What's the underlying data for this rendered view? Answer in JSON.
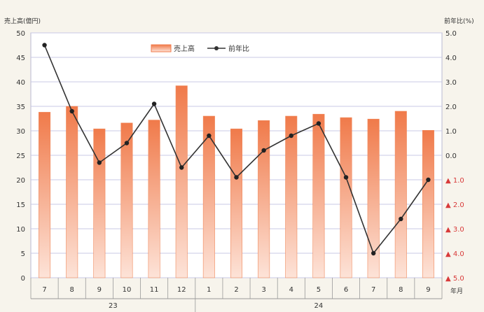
{
  "chart_data": {
    "type": "bar+line",
    "left_axis_title": "売上高(億円)",
    "right_axis_title": "前年比(%)",
    "corner_label": "年月",
    "legend": {
      "bar_label": "売上高",
      "line_label": "前年比"
    },
    "months": [
      "7",
      "8",
      "9",
      "10",
      "11",
      "12",
      "1",
      "2",
      "3",
      "4",
      "5",
      "6",
      "7",
      "8",
      "9"
    ],
    "years": [
      {
        "label": "23",
        "span": 6
      },
      {
        "label": "24",
        "span": 9
      }
    ],
    "series": [
      {
        "name": "売上高",
        "axis": "left",
        "kind": "bar",
        "color": "#f08a5d",
        "values": [
          33.8,
          35.0,
          30.4,
          31.6,
          32.2,
          39.2,
          33.0,
          30.4,
          32.1,
          33.0,
          33.4,
          32.7,
          32.4,
          34.0,
          30.1
        ]
      },
      {
        "name": "前年比",
        "axis": "right",
        "kind": "line",
        "color": "#333333",
        "values": [
          4.5,
          1.8,
          -0.3,
          0.5,
          2.1,
          -0.5,
          0.8,
          -0.9,
          0.2,
          0.8,
          1.3,
          -0.9,
          -4.0,
          -2.6,
          -1.0
        ]
      }
    ],
    "left_axis": {
      "min": 0,
      "max": 50,
      "ticks": [
        "0",
        "5",
        "10",
        "15",
        "20",
        "25",
        "30",
        "35",
        "40",
        "45",
        "50"
      ]
    },
    "right_axis": {
      "min": -5,
      "max": 5,
      "ticks": [
        {
          "value": 5,
          "label": "5.0"
        },
        {
          "value": 4,
          "label": "4.0"
        },
        {
          "value": 3,
          "label": "3.0"
        },
        {
          "value": 2,
          "label": "2.0"
        },
        {
          "value": 1,
          "label": "1.0"
        },
        {
          "value": 0,
          "label": "0.0"
        },
        {
          "value": -1,
          "label": "▲ 1.0"
        },
        {
          "value": -2,
          "label": "▲ 2.0"
        },
        {
          "value": -3,
          "label": "▲ 3.0"
        },
        {
          "value": -4,
          "label": "▲ 4.0"
        },
        {
          "value": -5,
          "label": "▲ 5.0"
        }
      ]
    },
    "grid": true,
    "colors": {
      "negative_label": "#d83a3a",
      "grid": "#c8c8e6",
      "bar_gradient_top": "#f07a4a",
      "bar_gradient_bottom": "#fde3d8"
    }
  }
}
